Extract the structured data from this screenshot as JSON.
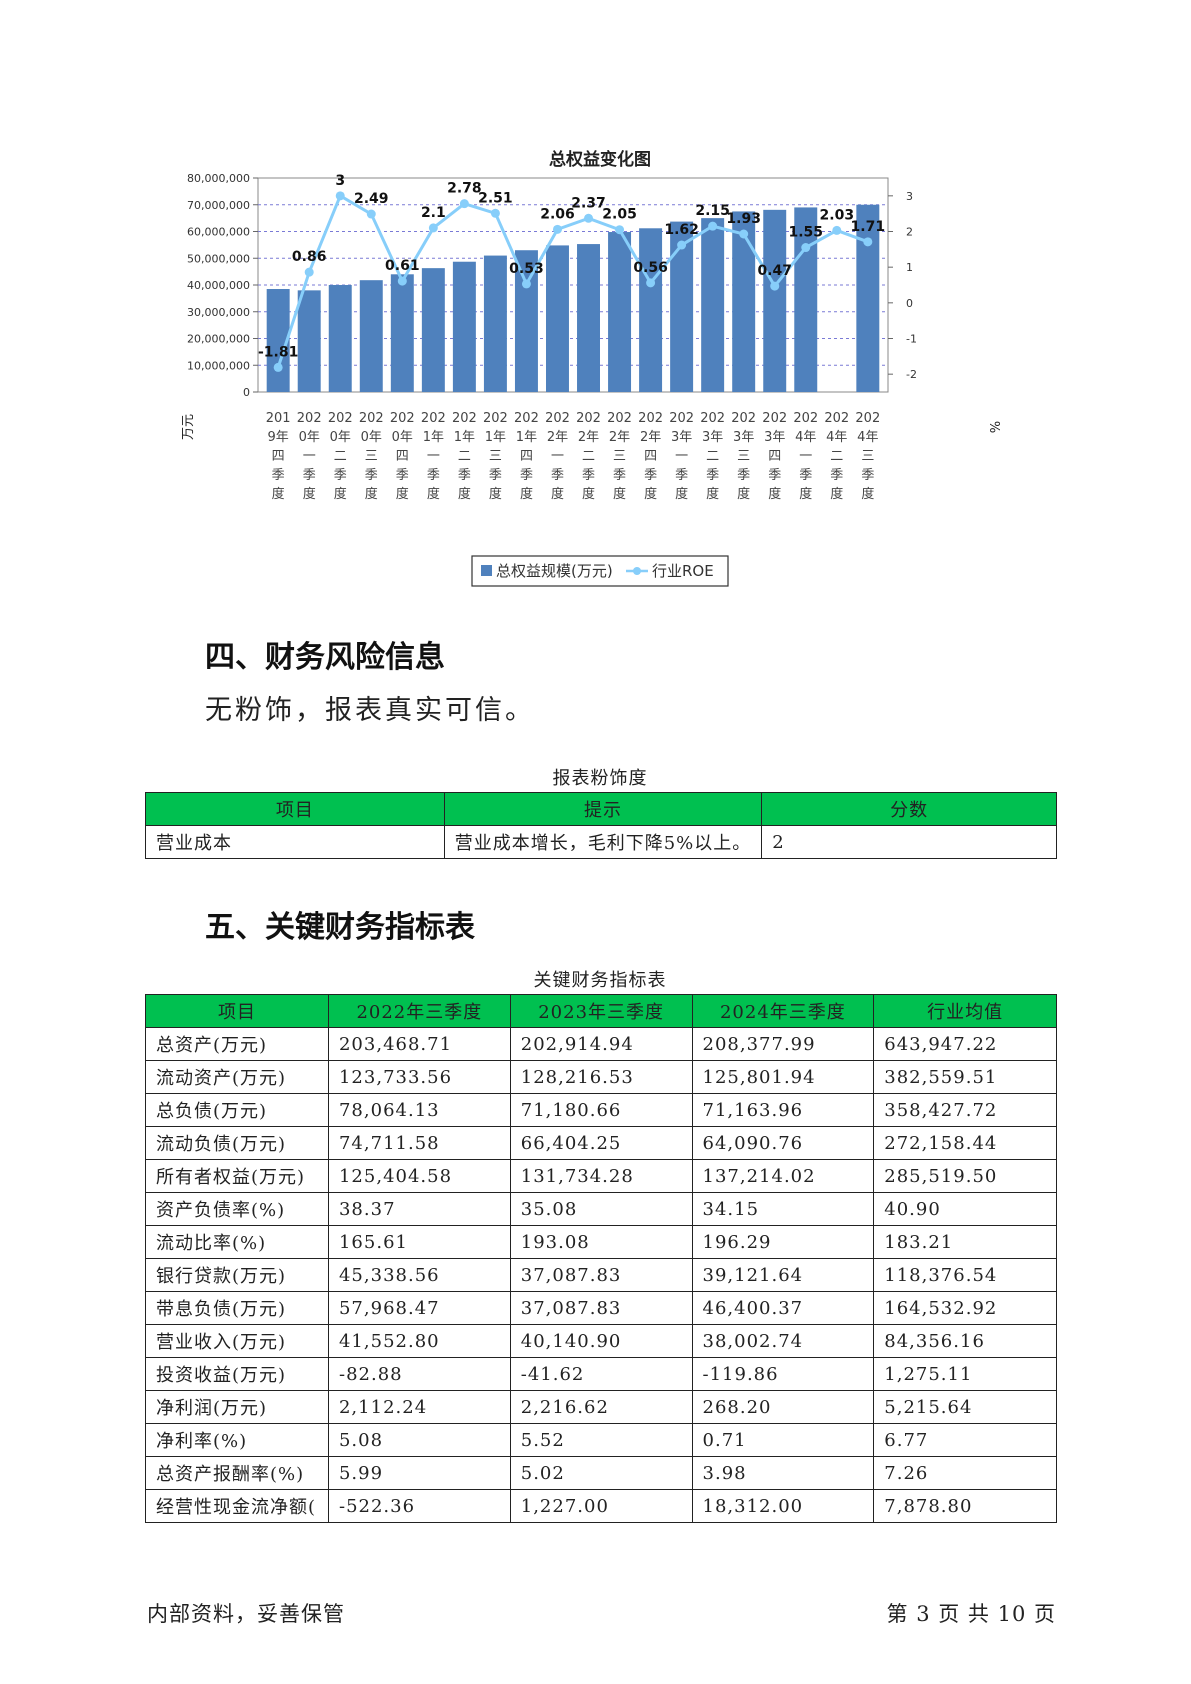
{
  "chart_data": {
    "type": "bar",
    "title": "总权益变化图",
    "ylabel_left": "万元",
    "ylabel_right": "%",
    "categories": [
      "2019年四季度",
      "2020年一季度",
      "2020年二季度",
      "2020年三季度",
      "2020年四季度",
      "2021年一季度",
      "2021年二季度",
      "2021年三季度",
      "2021年四季度",
      "2022年一季度",
      "2022年二季度",
      "2022年三季度",
      "2022年四季度",
      "2023年一季度",
      "2023年二季度",
      "2023年三季度",
      "2023年四季度",
      "2024年一季度",
      "2024年二季度",
      "2024年三季度"
    ],
    "category_lines": [
      [
        "201",
        "9年",
        "四",
        "季",
        "度"
      ],
      [
        "202",
        "0年",
        "一",
        "季",
        "度"
      ],
      [
        "202",
        "0年",
        "二",
        "季",
        "度"
      ],
      [
        "202",
        "0年",
        "三",
        "季",
        "度"
      ],
      [
        "202",
        "0年",
        "四",
        "季",
        "度"
      ],
      [
        "202",
        "1年",
        "一",
        "季",
        "度"
      ],
      [
        "202",
        "1年",
        "二",
        "季",
        "度"
      ],
      [
        "202",
        "1年",
        "三",
        "季",
        "度"
      ],
      [
        "202",
        "1年",
        "四",
        "季",
        "度"
      ],
      [
        "202",
        "2年",
        "一",
        "季",
        "度"
      ],
      [
        "202",
        "2年",
        "二",
        "季",
        "度"
      ],
      [
        "202",
        "2年",
        "三",
        "季",
        "度"
      ],
      [
        "202",
        "2年",
        "四",
        "季",
        "度"
      ],
      [
        "202",
        "3年",
        "一",
        "季",
        "度"
      ],
      [
        "202",
        "3年",
        "二",
        "季",
        "度"
      ],
      [
        "202",
        "3年",
        "三",
        "季",
        "度"
      ],
      [
        "202",
        "3年",
        "四",
        "季",
        "度"
      ],
      [
        "202",
        "4年",
        "一",
        "季",
        "度"
      ],
      [
        "202",
        "4年",
        "二",
        "季",
        "度"
      ],
      [
        "202",
        "4年",
        "三",
        "季",
        "度"
      ]
    ],
    "series": [
      {
        "name": "总权益规模(万元)",
        "type": "bar",
        "axis": "left",
        "color": "#4f81bd",
        "values": [
          38500000,
          38000000,
          40000000,
          41800000,
          44000000,
          46300000,
          48700000,
          51000000,
          53000000,
          54800000,
          55300000,
          59800000,
          61200000,
          63700000,
          65000000,
          67500000,
          68100000,
          69000000,
          null,
          70000000
        ]
      },
      {
        "name": "行业ROE",
        "type": "line",
        "axis": "right",
        "color": "#87cefa",
        "values": [
          -1.81,
          0.86,
          3,
          2.49,
          0.61,
          2.1,
          2.78,
          2.51,
          0.53,
          2.06,
          2.37,
          2.05,
          0.56,
          1.62,
          2.15,
          1.93,
          0.47,
          1.55,
          2.03,
          1.71
        ]
      }
    ],
    "data_labels": [
      "-1.81",
      "0.86",
      "3",
      "2.49",
      "0.61",
      "2.1",
      "2.78",
      "2.51",
      "0.53",
      "2.06",
      "2.37",
      "2.05",
      "0.56",
      "1.62",
      "2.15",
      "1.93",
      "0.47",
      "1.55",
      "2.03",
      "1.71"
    ],
    "left_ticks": [
      "0",
      "10,000,000",
      "20,000,000",
      "30,000,000",
      "40,000,000",
      "50,000,000",
      "60,000,000",
      "70,000,000",
      "80,000,000"
    ],
    "right_ticks": [
      "-2",
      "-1",
      "0",
      "1",
      "2",
      "3"
    ],
    "ylim_left": [
      0,
      80000000
    ],
    "ylim_right": [
      -2.5,
      3.5
    ],
    "grid": true,
    "legend_position": "bottom"
  },
  "section4": {
    "title": "四、财务风险信息",
    "text": "无粉饰，报表真实可信。",
    "table_caption": "报表粉饰度",
    "headers": [
      "项目",
      "提示",
      "分数"
    ],
    "rows": [
      [
        "营业成本",
        "营业成本增长，毛利下降5%以上。",
        "2"
      ]
    ]
  },
  "section5": {
    "title": "五、关键财务指标表",
    "table_caption": "关键财务指标表",
    "headers": [
      "项目",
      "2022年三季度",
      "2023年三季度",
      "2024年三季度",
      "行业均值"
    ],
    "rows": [
      [
        "总资产(万元)",
        "203,468.71",
        "202,914.94",
        "208,377.99",
        "643,947.22"
      ],
      [
        "流动资产(万元)",
        "123,733.56",
        "128,216.53",
        "125,801.94",
        "382,559.51"
      ],
      [
        "总负债(万元)",
        "78,064.13",
        "71,180.66",
        "71,163.96",
        "358,427.72"
      ],
      [
        "流动负债(万元)",
        "74,711.58",
        "66,404.25",
        "64,090.76",
        "272,158.44"
      ],
      [
        "所有者权益(万元)",
        "125,404.58",
        "131,734.28",
        "137,214.02",
        "285,519.50"
      ],
      [
        "资产负债率(%)",
        "38.37",
        "35.08",
        "34.15",
        "40.90"
      ],
      [
        "流动比率(%)",
        "165.61",
        "193.08",
        "196.29",
        "183.21"
      ],
      [
        "银行贷款(万元)",
        "45,338.56",
        "37,087.83",
        "39,121.64",
        "118,376.54"
      ],
      [
        "带息负债(万元)",
        "57,968.47",
        "37,087.83",
        "46,400.37",
        "164,532.92"
      ],
      [
        "营业收入(万元)",
        "41,552.80",
        "40,140.90",
        "38,002.74",
        "84,356.16"
      ],
      [
        "投资收益(万元)",
        "-82.88",
        "-41.62",
        "-119.86",
        "1,275.11"
      ],
      [
        "净利润(万元)",
        "2,112.24",
        "2,216.62",
        "268.20",
        "5,215.64"
      ],
      [
        "净利率(%)",
        "5.08",
        "5.52",
        "0.71",
        "6.77"
      ],
      [
        "总资产报酬率(%)",
        "5.99",
        "5.02",
        "3.98",
        "7.26"
      ],
      [
        "经营性现金流净额(",
        "-522.36",
        "1,227.00",
        "18,312.00",
        "7,878.80"
      ]
    ]
  },
  "footer": {
    "left": "内部资料，妥善保管",
    "right": "第 3 页  共 10 页"
  }
}
